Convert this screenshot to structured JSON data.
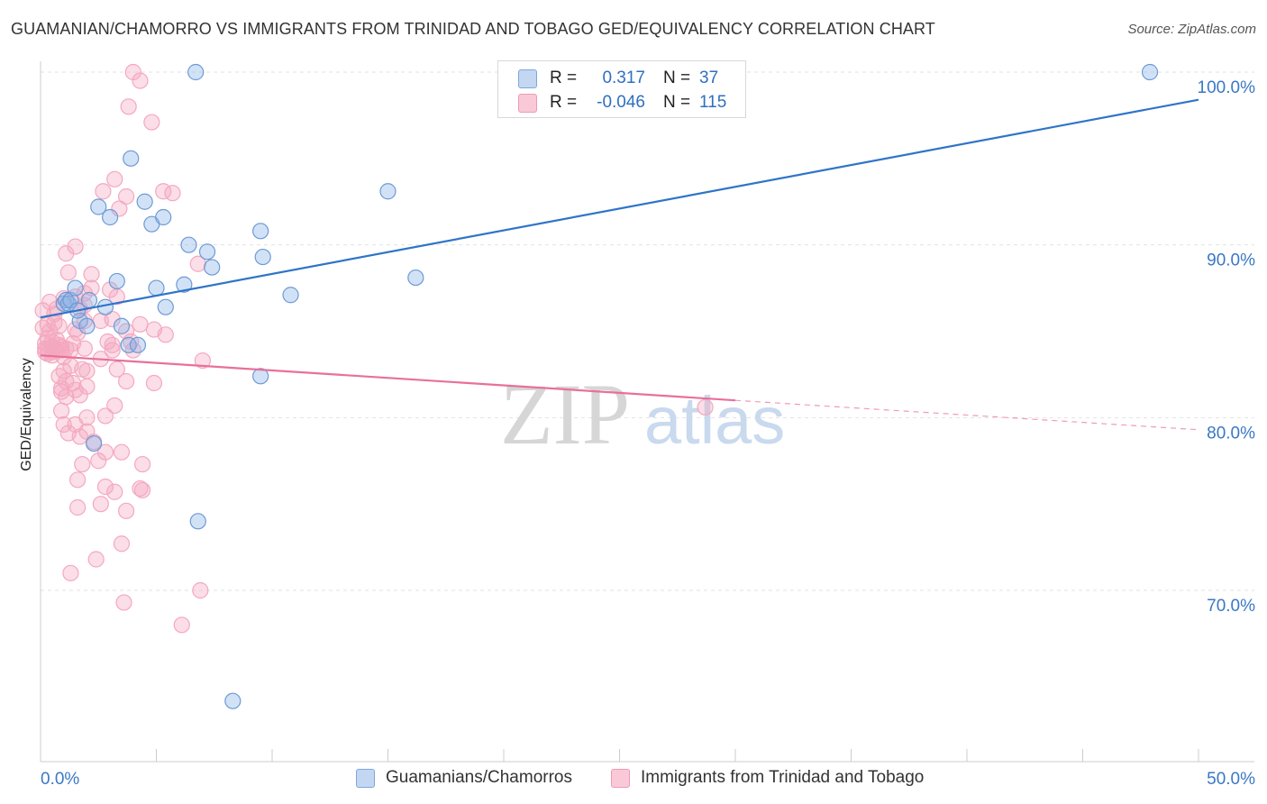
{
  "title": "GUAMANIAN/CHAMORRO VS IMMIGRANTS FROM TRINIDAD AND TOBAGO GED/EQUIVALENCY CORRELATION CHART",
  "source": "Source: ZipAtlas.com",
  "watermark": {
    "zip": "ZIP",
    "atlas": "atlas"
  },
  "colors": {
    "blue": "#8ab4e8",
    "blue_line": "#2f74c8",
    "pink": "#f4a8c0",
    "pink_line": "#e8709a",
    "tick_label": "#3a78c4",
    "grid": "#e2e2e2"
  },
  "legend": {
    "rows": [
      {
        "r_label": "R =",
        "r_value": "0.317",
        "n_label": "N =",
        "n_value": "37"
      },
      {
        "r_label": "R =",
        "r_value": "-0.046",
        "n_label": "N =",
        "n_value": "115"
      }
    ]
  },
  "bottom_legend": [
    {
      "label": "Guamanians/Chamorros"
    },
    {
      "label": "Immigrants from Trinidad and Tobago"
    }
  ],
  "chart_data": {
    "type": "scatter",
    "title": "GUAMANIAN/CHAMORRO VS IMMIGRANTS FROM TRINIDAD AND TOBAGO GED/EQUIVALENCY CORRELATION CHART",
    "xlabel": "",
    "ylabel": "GED/Equivalency",
    "xlim": [
      0,
      50
    ],
    "ylim": [
      60,
      101
    ],
    "x_tick_labels": [
      "0.0%",
      "50.0%"
    ],
    "y_ticks": [
      70,
      80,
      90,
      100
    ],
    "y_tick_labels": [
      "70.0%",
      "80.0%",
      "90.0%",
      "100.0%"
    ],
    "series": [
      {
        "name": "Guamanians/Chamorros",
        "r": 0.317,
        "n": 37,
        "trend": {
          "x": [
            0,
            50
          ],
          "y": [
            85.8,
            98.4
          ]
        },
        "points": [
          [
            1.0,
            86.6
          ],
          [
            1.1,
            86.8
          ],
          [
            1.2,
            86.6
          ],
          [
            1.3,
            86.8
          ],
          [
            1.5,
            87.5
          ],
          [
            1.7,
            85.6
          ],
          [
            2.1,
            86.8
          ],
          [
            2.3,
            78.5
          ],
          [
            2.5,
            92.2
          ],
          [
            2.8,
            86.4
          ],
          [
            3.0,
            91.6
          ],
          [
            3.3,
            87.9
          ],
          [
            3.5,
            85.3
          ],
          [
            3.8,
            84.2
          ],
          [
            3.9,
            95.0
          ],
          [
            4.2,
            84.2
          ],
          [
            4.5,
            92.5
          ],
          [
            4.8,
            91.2
          ],
          [
            5.0,
            87.5
          ],
          [
            5.3,
            91.6
          ],
          [
            5.4,
            86.4
          ],
          [
            6.2,
            87.7
          ],
          [
            6.4,
            90.0
          ],
          [
            6.7,
            100.0
          ],
          [
            6.8,
            74.0
          ],
          [
            7.2,
            89.6
          ],
          [
            7.4,
            88.7
          ],
          [
            8.3,
            63.6
          ],
          [
            9.5,
            90.8
          ],
          [
            9.5,
            82.4
          ],
          [
            9.6,
            89.3
          ],
          [
            10.8,
            87.1
          ],
          [
            15.0,
            93.1
          ],
          [
            16.2,
            88.1
          ],
          [
            47.9,
            100.0
          ],
          [
            2.0,
            85.3
          ],
          [
            1.6,
            86.2
          ]
        ]
      },
      {
        "name": "Immigrants from Trinidad and Tobago",
        "r": -0.046,
        "n": 115,
        "trend": {
          "x": [
            0,
            30
          ],
          "y": [
            83.6,
            81.0
          ]
        },
        "trend_dashed": {
          "x": [
            30,
            50
          ],
          "y": [
            81.0,
            79.3
          ]
        },
        "points": [
          [
            0.1,
            86.2
          ],
          [
            0.1,
            85.2
          ],
          [
            0.2,
            84.3
          ],
          [
            0.2,
            84.0
          ],
          [
            0.2,
            83.8
          ],
          [
            0.3,
            85.4
          ],
          [
            0.3,
            84.6
          ],
          [
            0.3,
            84.0
          ],
          [
            0.3,
            83.7
          ],
          [
            0.4,
            86.7
          ],
          [
            0.4,
            85.0
          ],
          [
            0.5,
            84.4
          ],
          [
            0.5,
            84.1
          ],
          [
            0.5,
            83.8
          ],
          [
            0.6,
            86.0
          ],
          [
            0.6,
            85.5
          ],
          [
            0.6,
            84.0
          ],
          [
            0.7,
            86.3
          ],
          [
            0.7,
            84.5
          ],
          [
            0.7,
            83.9
          ],
          [
            0.8,
            85.3
          ],
          [
            0.8,
            84.2
          ],
          [
            0.8,
            82.4
          ],
          [
            0.9,
            84.1
          ],
          [
            0.9,
            83.9
          ],
          [
            0.9,
            81.7
          ],
          [
            0.9,
            81.5
          ],
          [
            0.9,
            80.4
          ],
          [
            1.0,
            86.9
          ],
          [
            1.0,
            83.5
          ],
          [
            1.0,
            82.7
          ],
          [
            1.0,
            79.6
          ],
          [
            1.1,
            89.5
          ],
          [
            1.1,
            84.0
          ],
          [
            1.1,
            82.1
          ],
          [
            1.1,
            81.2
          ],
          [
            1.2,
            88.4
          ],
          [
            1.2,
            79.1
          ],
          [
            1.3,
            83.9
          ],
          [
            1.3,
            83.0
          ],
          [
            1.3,
            71.0
          ],
          [
            1.4,
            84.3
          ],
          [
            1.4,
            82.0
          ],
          [
            1.5,
            89.9
          ],
          [
            1.5,
            87.0
          ],
          [
            1.5,
            85.1
          ],
          [
            1.5,
            81.6
          ],
          [
            1.5,
            79.6
          ],
          [
            1.6,
            84.9
          ],
          [
            1.6,
            76.4
          ],
          [
            1.6,
            74.8
          ],
          [
            1.7,
            86.3
          ],
          [
            1.7,
            81.3
          ],
          [
            1.7,
            78.9
          ],
          [
            1.8,
            77.3
          ],
          [
            1.8,
            82.8
          ],
          [
            1.9,
            87.2
          ],
          [
            1.9,
            86.5
          ],
          [
            1.9,
            85.6
          ],
          [
            1.9,
            84.0
          ],
          [
            2.0,
            82.7
          ],
          [
            2.0,
            81.8
          ],
          [
            2.0,
            80.0
          ],
          [
            2.0,
            79.2
          ],
          [
            2.2,
            88.3
          ],
          [
            2.2,
            87.5
          ],
          [
            2.3,
            78.6
          ],
          [
            2.4,
            71.8
          ],
          [
            2.5,
            77.5
          ],
          [
            2.6,
            85.6
          ],
          [
            2.6,
            83.4
          ],
          [
            2.6,
            75.0
          ],
          [
            2.7,
            93.1
          ],
          [
            2.8,
            80.1
          ],
          [
            2.8,
            78.0
          ],
          [
            2.8,
            76.0
          ],
          [
            2.9,
            84.4
          ],
          [
            3.0,
            87.4
          ],
          [
            3.1,
            85.7
          ],
          [
            3.1,
            84.2
          ],
          [
            3.1,
            83.9
          ],
          [
            3.2,
            93.8
          ],
          [
            3.2,
            80.7
          ],
          [
            3.2,
            75.7
          ],
          [
            3.3,
            87.0
          ],
          [
            3.3,
            82.8
          ],
          [
            3.4,
            92.1
          ],
          [
            3.5,
            78.0
          ],
          [
            3.5,
            72.7
          ],
          [
            3.6,
            69.3
          ],
          [
            3.7,
            92.8
          ],
          [
            3.7,
            85.0
          ],
          [
            3.7,
            82.1
          ],
          [
            3.7,
            74.6
          ],
          [
            3.8,
            98.0
          ],
          [
            3.9,
            84.4
          ],
          [
            4.0,
            83.9
          ],
          [
            4.0,
            100.0
          ],
          [
            4.3,
            99.5
          ],
          [
            4.3,
            85.4
          ],
          [
            4.3,
            75.9
          ],
          [
            4.4,
            77.3
          ],
          [
            4.4,
            75.8
          ],
          [
            4.8,
            97.1
          ],
          [
            4.9,
            85.1
          ],
          [
            4.9,
            82.0
          ],
          [
            5.3,
            93.1
          ],
          [
            5.4,
            84.8
          ],
          [
            5.7,
            93.0
          ],
          [
            6.1,
            68.0
          ],
          [
            6.8,
            88.9
          ],
          [
            6.9,
            70.0
          ],
          [
            7.0,
            83.3
          ],
          [
            28.7,
            80.6
          ],
          [
            0.5,
            83.6
          ]
        ]
      }
    ]
  }
}
